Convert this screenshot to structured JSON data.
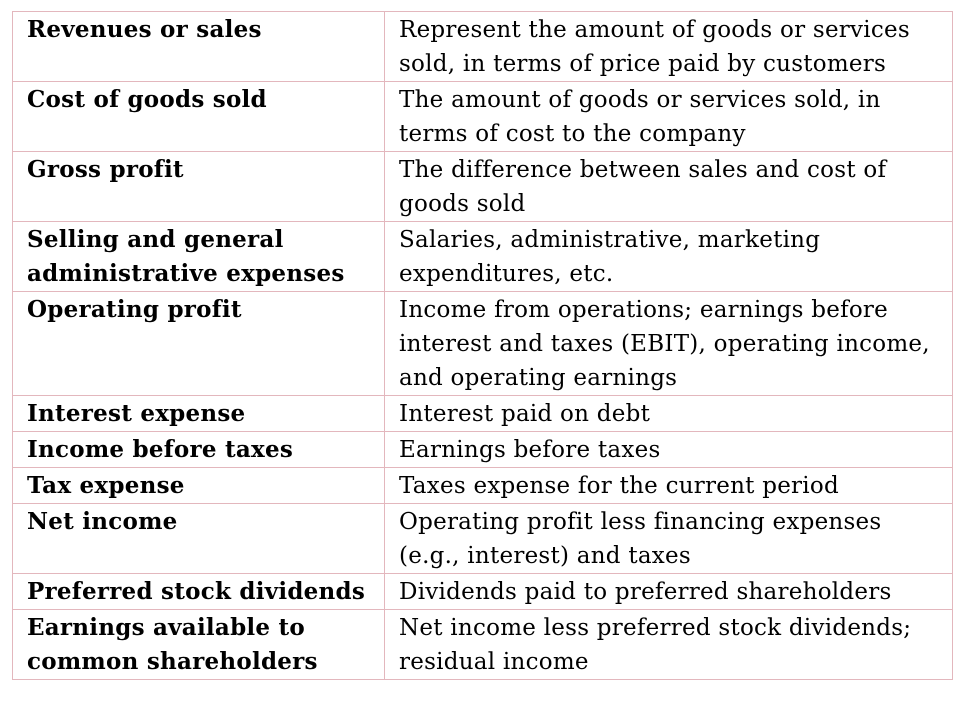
{
  "rows": [
    {
      "term": "Revenues or sales",
      "definition": "Represent the amount of goods or services sold, in terms of price paid by customers"
    },
    {
      "term": "Cost of goods sold",
      "definition": "The amount of goods or services sold, in terms of cost to the company"
    },
    {
      "term": "Gross profit",
      "definition": "The difference between sales and cost of goods sold"
    },
    {
      "term": "Selling and general administrative expenses",
      "definition": "Salaries, administrative, marketing expenditures, etc."
    },
    {
      "term": "Operating profit",
      "definition": "Income from operations; earnings before interest and taxes (EBIT), operating income, and operating earnings"
    },
    {
      "term": "Interest expense",
      "definition": "Interest paid on debt"
    },
    {
      "term": "Income before taxes",
      "definition": "Earnings before taxes"
    },
    {
      "term": "Tax expense",
      "definition": "Taxes expense for the current period"
    },
    {
      "term": "Net income",
      "definition": "Operating profit less financing expenses (e.g., interest) and taxes"
    },
    {
      "term": "Preferred stock dividends",
      "definition": "Dividends paid to preferred shareholders"
    },
    {
      "term": "Earnings available to common shareholders",
      "definition": "Net income less preferred stock dividends; residual income"
    }
  ],
  "colors": {
    "border": "#e3b7bd",
    "text": "#000000",
    "background": "#ffffff"
  }
}
